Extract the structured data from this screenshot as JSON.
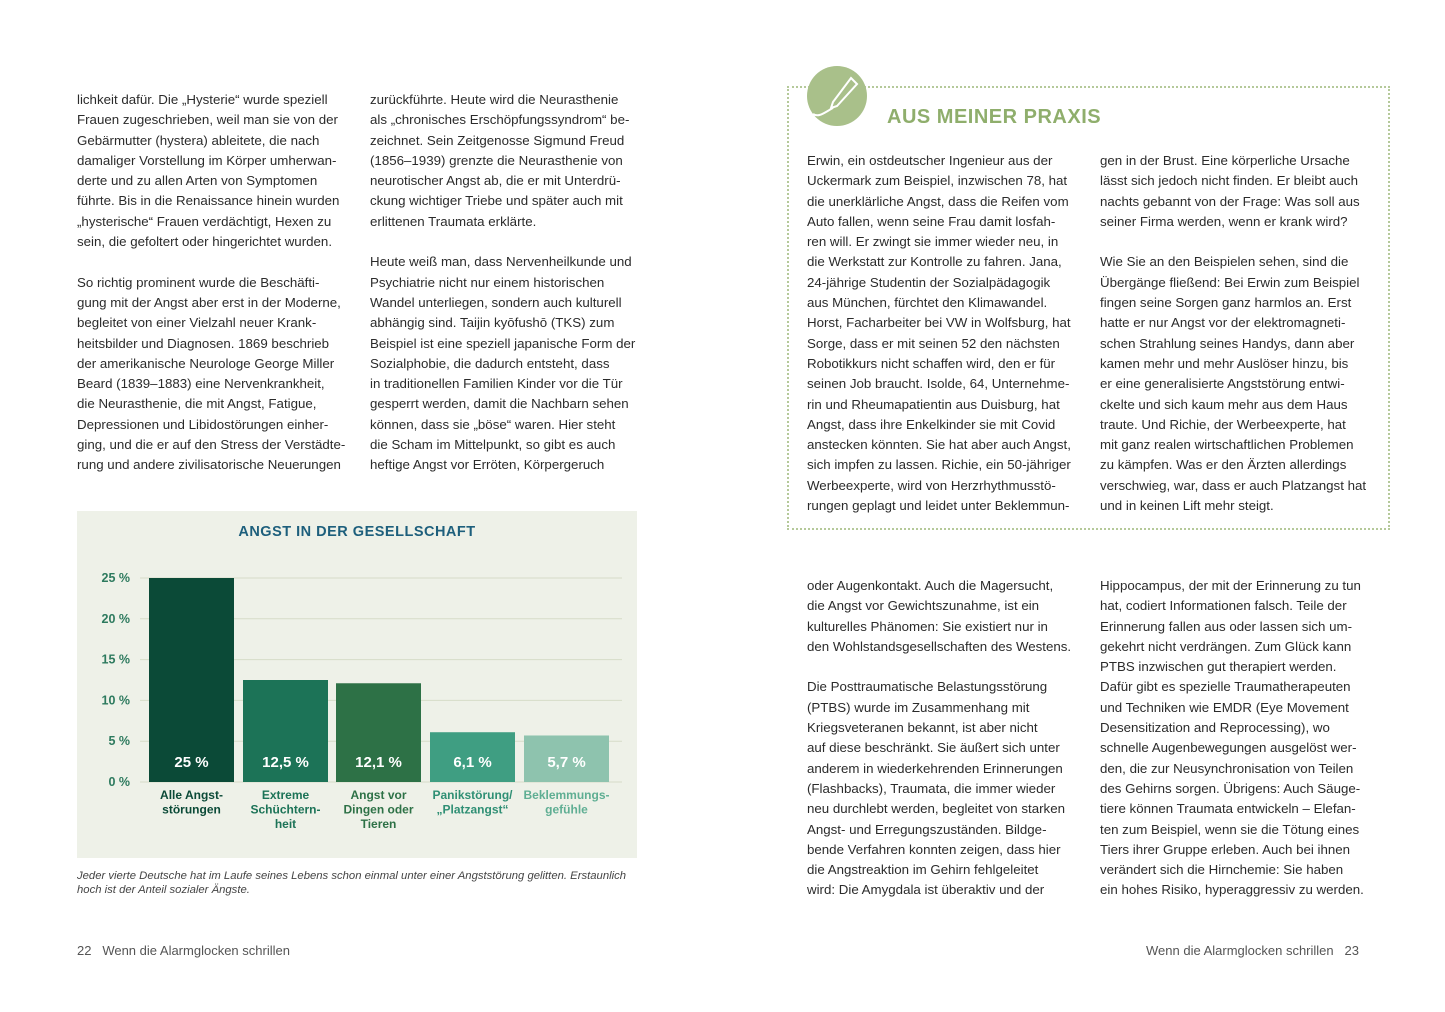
{
  "left_page": {
    "col1": [
      [
        "lichkeit dafür. Die „Hysterie“ wurde speziell",
        "Frauen zugeschrieben, weil man sie von der",
        "Gebärmutter (hystera) ableitete, die nach",
        "damaliger Vorstellung im Körper umherwan-",
        "derte und zu allen Arten von Symptomen",
        "führte. Bis in die Renaissance hinein wurden",
        "„hysterische“ Frauen verdächtigt, Hexen zu",
        "sein, die gefoltert oder hingerichtet wurden."
      ],
      [
        "So richtig prominent wurde die Beschäfti-",
        "gung mit der Angst aber erst in der Moderne,",
        "begleitet von einer Vielzahl neuer Krank-",
        "heitsbilder und Diagnosen. 1869 beschrieb",
        "der amerikanische Neurologe George Miller",
        "Beard (1839–1883) eine Nervenkrankheit,",
        "die Neurasthenie, die mit Angst, Fatigue,",
        "Depressionen und Libidostörungen einher-",
        "ging, und die er auf den Stress der Verstädte-",
        "rung und andere zivilisatorische Neuerungen"
      ]
    ],
    "col2": [
      [
        "zurückführte. Heute wird die Neurasthenie",
        "als „chronisches Erschöpfungssyndrom“ be-",
        "zeichnet. Sein Zeitgenosse Sigmund Freud",
        "(1856–1939) grenzte die Neurasthenie von",
        "neurotischer Angst ab, die er mit Unterdrü-",
        "ckung wichtiger Triebe und später auch mit",
        "erlittenen Traumata erklärte."
      ],
      [
        "Heute weiß man, dass Nervenheilkunde und",
        "Psychiatrie nicht nur einem historischen",
        "Wandel unterliegen, sondern auch kulturell",
        "abhängig sind. Taijin kyōfushō (TKS) zum",
        "Beispiel ist eine speziell japanische Form der",
        "Sozialphobie, die dadurch entsteht, dass",
        "in traditionellen Familien Kinder vor die Tür",
        "gesperrt werden, damit die Nachbarn sehen",
        "können, dass sie „böse“ waren. Hier steht",
        "die Scham im Mittelpunkt, so gibt es auch",
        "heftige Angst vor Erröten, Körpergeruch"
      ]
    ],
    "caption": "Jeder vierte Deutsche hat im Laufe seines Lebens schon einmal unter einer Angststörung gelitten. Erstaunlich hoch ist der Anteil sozialer Ängste.",
    "footer": {
      "page": "22",
      "title": "Wenn die Alarmglocken schrillen"
    }
  },
  "chart_data": {
    "type": "bar",
    "title": "ANGST IN DER GESELLSCHAFT",
    "categories": [
      "Alle Angst-\nstörungen",
      "Extreme\nSchüchtern-\nheit",
      "Angst vor\nDingen oder\nTieren",
      "Panikstörung/\n„Platzangst“",
      "Beklemmungs-\ngefühle"
    ],
    "values": [
      25,
      12.5,
      12.1,
      6.1,
      5.7
    ],
    "value_labels": [
      "25 %",
      "12,5 %",
      "12,1 %",
      "6,1 %",
      "5,7 %"
    ],
    "colors": [
      "#0b4a37",
      "#1c7357",
      "#2d7146",
      "#3f9e82",
      "#8ec3ae"
    ],
    "label_colors": [
      "#0b4a37",
      "#1c7357",
      "#2d7146",
      "#2f8f74",
      "#5fae93"
    ],
    "yticks": [
      "0 %",
      "5 %",
      "10 %",
      "15 %",
      "20 %",
      "25 %"
    ],
    "ylim": [
      0,
      25
    ],
    "grid": true
  },
  "right_page": {
    "praxis_title": "AUS MEINER PRAXIS",
    "praxis_col1": [
      [
        "Erwin, ein ostdeutscher Ingenieur aus der",
        "Uckermark zum Beispiel, inzwischen 78, hat",
        "die unerklärliche Angst, dass die Reifen vom",
        "Auto fallen, wenn seine Frau damit losfah-",
        "ren will. Er zwingt sie immer wieder neu, in",
        "die Werkstatt zur Kontrolle zu fahren. Jana,",
        "24-jährige Studentin der Sozialpädagogik",
        "aus München, fürchtet den Klimawandel.",
        "Horst, Facharbeiter bei VW in Wolfsburg, hat",
        "Sorge, dass er mit seinen 52 den nächsten",
        "Robotikkurs nicht schaffen wird, den er für",
        "seinen Job braucht. Isolde, 64, Unternehme-",
        "rin und Rheumapatientin aus Duisburg, hat",
        "Angst, dass ihre Enkelkinder sie mit Covid",
        "anstecken könnten. Sie hat aber auch Angst,",
        "sich impfen zu lassen. Richie, ein 50-jähriger",
        "Werbeexperte, wird von Herzrhythmusstö-",
        "rungen geplagt und leidet unter Beklemmun-"
      ]
    ],
    "praxis_col2": [
      [
        "gen in der Brust. Eine körperliche Ursache",
        "lässt sich jedoch nicht finden. Er bleibt auch",
        "nachts gebannt von der Frage: Was soll aus",
        "seiner Firma werden, wenn er krank wird?"
      ],
      [
        "Wie Sie an den Beispielen sehen, sind die",
        "Übergänge fließend: Bei Erwin zum Beispiel",
        "fingen seine Sorgen ganz harmlos an. Erst",
        "hatte er nur Angst vor der elektromagneti-",
        "schen Strahlung seines Handys, dann aber",
        "kamen mehr und mehr Auslöser hinzu, bis",
        "er eine generalisierte Angststörung entwi-",
        "ckelte und sich kaum mehr aus dem Haus",
        "traute. Und Richie, der Werbeexperte, hat",
        "mit ganz realen wirtschaftlichen Problemen",
        "zu kämpfen. Was er den Ärzten allerdings",
        "verschwieg, war, dass er auch Platzangst hat",
        "und in keinen Lift mehr steigt."
      ]
    ],
    "col1": [
      [
        "oder Augenkontakt. Auch die Magersucht,",
        "die Angst vor Gewichtszunahme, ist ein",
        "kulturelles Phänomen: Sie existiert nur in",
        "den Wohlstandsgesellschaften des Westens."
      ],
      [
        "Die Posttraumatische Belastungsstörung",
        "(PTBS) wurde im Zusammenhang mit",
        "Kriegsveteranen bekannt, ist aber nicht",
        "auf diese beschränkt. Sie äußert sich unter",
        "anderem in wiederkehrenden Erinnerungen",
        "(Flashbacks), Traumata, die immer wieder",
        "neu durchlebt werden, begleitet von starken",
        "Angst- und Erregungszuständen. Bildge-",
        "bende Verfahren konnten zeigen, dass hier",
        "die Angstreaktion im Gehirn fehlgeleitet",
        "wird: Die Amygdala ist überaktiv und der"
      ]
    ],
    "col2": [
      [
        "Hippocampus, der mit der Erinnerung zu tun",
        "hat, codiert Informationen falsch. Teile der",
        "Erinnerung fallen aus oder lassen sich um-",
        "gekehrt nicht verdrängen. Zum Glück kann",
        "PTBS inzwischen gut therapiert werden.",
        "Dafür gibt es spezielle Traumatherapeuten",
        "und Techniken wie EMDR (Eye Movement",
        "Desensitization and Reprocessing), wo",
        "schnelle Augenbewegungen ausgelöst wer-",
        "den, die zur Neusynchronisation von Teilen",
        "des Gehirns sorgen. Übrigens: Auch Säuge-",
        "tiere können Traumata entwickeln – Elefan-",
        "ten zum Beispiel, wenn sie die Tötung eines",
        "Tiers ihrer Gruppe erleben. Auch bei ihnen",
        "verändert sich die Hirnchemie: Sie haben",
        "ein hohes Risiko, hyperaggressiv zu werden."
      ]
    ],
    "footer": {
      "page": "23",
      "title": "Wenn die Alarmglocken schrillen"
    }
  }
}
